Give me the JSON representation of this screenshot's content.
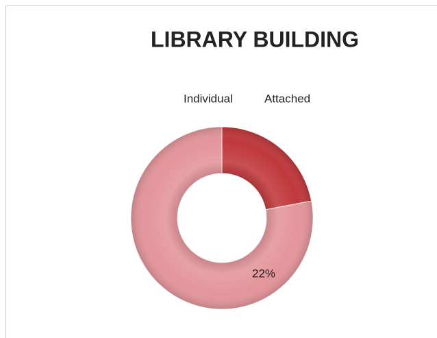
{
  "chart_data": {
    "type": "donut",
    "title": "LIBRARY BUILDING",
    "categories": [
      "Individual",
      "Attached"
    ],
    "values": [
      22,
      78
    ],
    "value_labels": [
      "22%",
      null
    ],
    "colors": [
      "#c0383c",
      "#e3959a"
    ]
  }
}
